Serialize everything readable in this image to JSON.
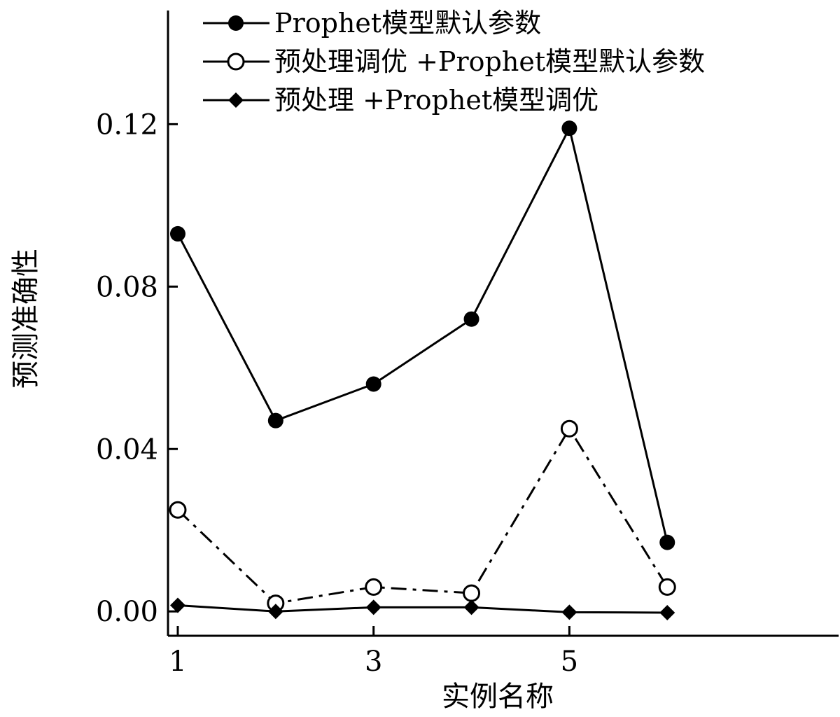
{
  "chart_data": {
    "type": "line",
    "title": "",
    "xlabel": "实例名称",
    "ylabel": "预测准确性",
    "x": [
      1,
      2,
      3,
      4,
      5,
      6
    ],
    "xlim": [
      0.9,
      7.75
    ],
    "ylim": [
      -0.006,
      0.148
    ],
    "xticks": [
      1,
      3,
      5
    ],
    "xtick_labels": [
      "1",
      "3",
      "5"
    ],
    "yticks": [
      0.0,
      0.04,
      0.08,
      0.12
    ],
    "ytick_labels": [
      "0.00",
      "0.04",
      "0.08",
      "0.12"
    ],
    "grid": false,
    "legend_position": "top",
    "series": [
      {
        "name": "Prophet模型默认参数",
        "values": [
          0.093,
          0.047,
          0.056,
          0.072,
          0.119,
          0.017
        ],
        "marker": "filled-circle",
        "line_style": "solid",
        "color": "#000000"
      },
      {
        "name": "预处理调优 +Prophet模型默认参数",
        "values": [
          0.025,
          0.002,
          0.006,
          0.0045,
          0.045,
          0.006
        ],
        "marker": "open-circle",
        "line_style": "dash-dot",
        "color": "#000000"
      },
      {
        "name": "预处理 +Prophet模型调优",
        "values": [
          0.0015,
          0.0,
          0.001,
          0.001,
          -0.0002,
          -0.0003
        ],
        "marker": "filled-diamond",
        "line_style": "solid",
        "color": "#000000"
      }
    ]
  }
}
